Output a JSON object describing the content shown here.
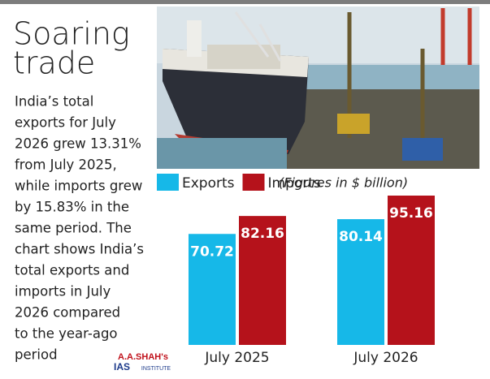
{
  "chart_data": {
    "type": "bar",
    "title_lines": [
      "Soaring",
      "trade"
    ],
    "description_lines": [
      "India’s total",
      "exports for July",
      "2026 grew 13.31%",
      "from July 2025,",
      "while imports grew",
      "by 15.83% in the",
      "same period. The",
      "chart shows India’s",
      "total exports and",
      "imports in July",
      "2026 compared",
      "to the  year-ago",
      "period"
    ],
    "note": "(Figures in $ billion)",
    "categories": [
      "July 2025",
      "July 2026"
    ],
    "series": [
      {
        "name": "Exports",
        "color": "#16b8e8",
        "values": [
          70.72,
          80.14
        ]
      },
      {
        "name": "Imports",
        "color": "#b5121b",
        "values": [
          82.16,
          95.16
        ]
      }
    ],
    "logo": {
      "name": "A.A.SHAH's",
      "subtitle": "IAS",
      "tagline": "INSTITUTE"
    }
  }
}
